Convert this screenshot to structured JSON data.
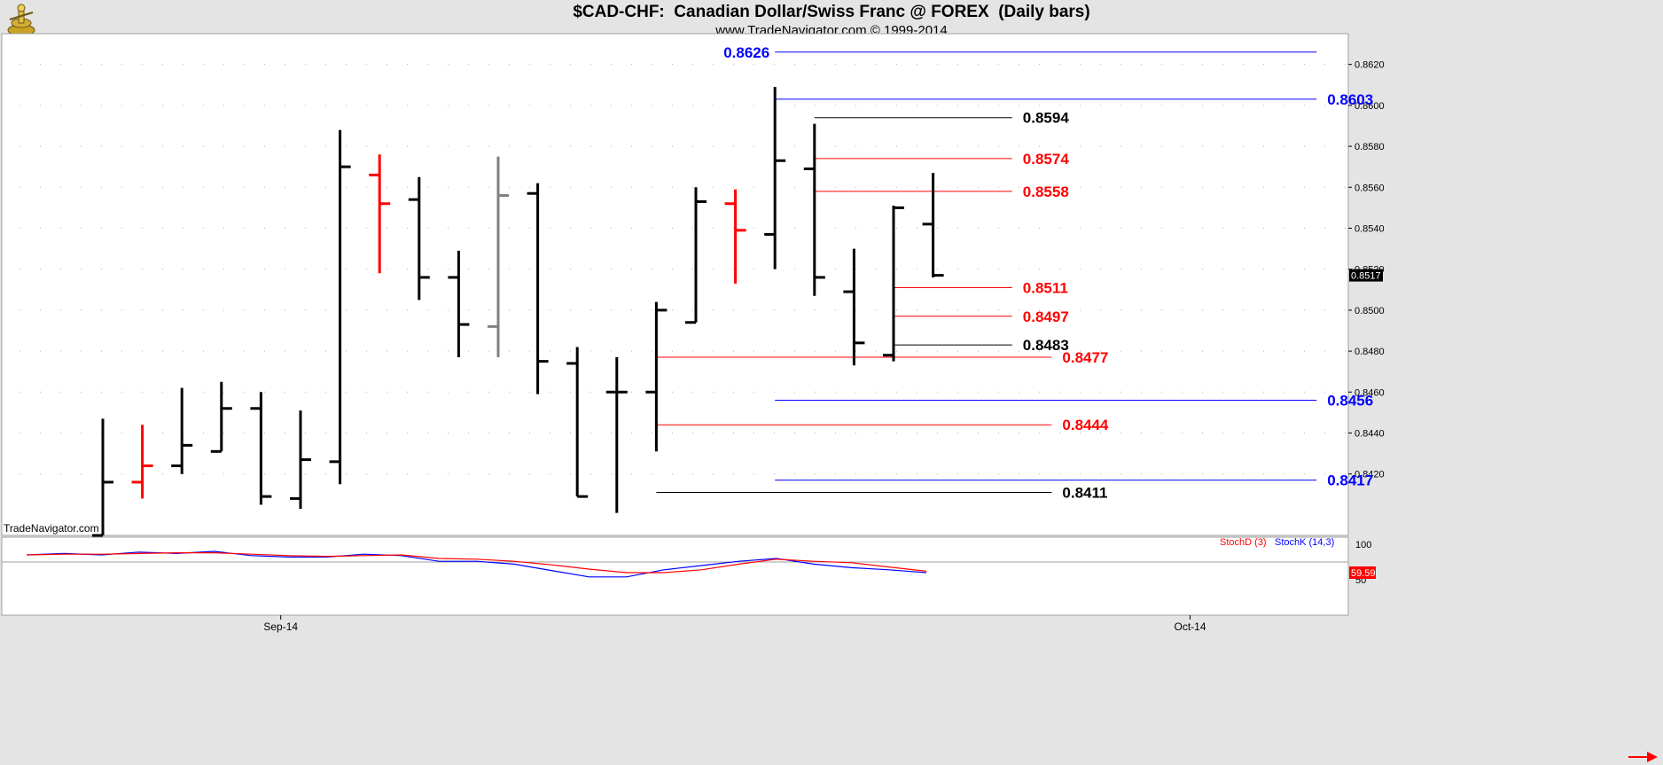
{
  "header": {
    "title": "$CAD-CHF:  Canadian Dollar/Swiss Franc @ FOREX  (Daily bars)",
    "subtitle": "www.TradeNavigator.com © 1999-2014"
  },
  "watermark": "TradeNavigator.com",
  "colors": {
    "up": "#000000",
    "down_red": "#ff0000",
    "gray": "#808080",
    "blue": "#0000ff",
    "panel_bg": "#ffffff",
    "frame_bg": "#e4e4e4"
  },
  "chart_data": [
    {
      "type": "ohlc",
      "title": "$CAD-CHF:  Canadian Dollar/Swiss Franc @ FOREX  (Daily bars)",
      "ylim": [
        0.839,
        0.8635
      ],
      "y_ticks": [
        0.842,
        0.844,
        0.846,
        0.848,
        0.85,
        0.852,
        0.854,
        0.856,
        0.858,
        0.86,
        0.862
      ],
      "x_tick_labels": [
        {
          "label": "Sep-14",
          "bar_index": 4.5
        },
        {
          "label": "Oct-14",
          "bar_index": 27.5
        }
      ],
      "last_price_label": "0.8517",
      "bars": [
        {
          "o": 0.839,
          "h": 0.8447,
          "l": 0.839,
          "c": 0.8416,
          "color": "black"
        },
        {
          "o": 0.8416,
          "h": 0.8444,
          "l": 0.8408,
          "c": 0.8424,
          "color": "red"
        },
        {
          "o": 0.8424,
          "h": 0.8462,
          "l": 0.842,
          "c": 0.8434,
          "color": "black"
        },
        {
          "o": 0.8431,
          "h": 0.8465,
          "l": 0.8431,
          "c": 0.8452,
          "color": "black"
        },
        {
          "o": 0.8452,
          "h": 0.846,
          "l": 0.8405,
          "c": 0.8409,
          "color": "black"
        },
        {
          "o": 0.8408,
          "h": 0.8451,
          "l": 0.8403,
          "c": 0.8427,
          "color": "black"
        },
        {
          "o": 0.8426,
          "h": 0.8588,
          "l": 0.8415,
          "c": 0.857,
          "color": "black"
        },
        {
          "o": 0.8566,
          "h": 0.8576,
          "l": 0.8518,
          "c": 0.8552,
          "color": "red"
        },
        {
          "o": 0.8554,
          "h": 0.8565,
          "l": 0.8505,
          "c": 0.8516,
          "color": "black"
        },
        {
          "o": 0.8516,
          "h": 0.8529,
          "l": 0.8477,
          "c": 0.8493,
          "color": "black"
        },
        {
          "o": 0.8492,
          "h": 0.8575,
          "l": 0.8477,
          "c": 0.8556,
          "color": "gray"
        },
        {
          "o": 0.8557,
          "h": 0.8562,
          "l": 0.8459,
          "c": 0.8475,
          "color": "black"
        },
        {
          "o": 0.8474,
          "h": 0.8482,
          "l": 0.8409,
          "c": 0.8409,
          "color": "black"
        },
        {
          "o": 0.846,
          "h": 0.8477,
          "l": 0.8401,
          "c": 0.846,
          "color": "black"
        },
        {
          "o": 0.846,
          "h": 0.8504,
          "l": 0.8431,
          "c": 0.85,
          "color": "black"
        },
        {
          "o": 0.8494,
          "h": 0.856,
          "l": 0.8494,
          "c": 0.8553,
          "color": "black"
        },
        {
          "o": 0.8552,
          "h": 0.8559,
          "l": 0.8513,
          "c": 0.8539,
          "color": "red"
        },
        {
          "o": 0.8537,
          "h": 0.8609,
          "l": 0.852,
          "c": 0.8573,
          "color": "black"
        },
        {
          "o": 0.8569,
          "h": 0.8591,
          "l": 0.8507,
          "c": 0.8516,
          "color": "black"
        },
        {
          "o": 0.8509,
          "h": 0.853,
          "l": 0.8473,
          "c": 0.8484,
          "color": "black"
        },
        {
          "o": 0.8478,
          "h": 0.8551,
          "l": 0.8475,
          "c": 0.855,
          "color": "black"
        },
        {
          "o": 0.8542,
          "h": 0.8567,
          "l": 0.8516,
          "c": 0.8517,
          "color": "black"
        }
      ],
      "levels": [
        {
          "value": 0.8626,
          "label": "0.8626",
          "color": "blue",
          "from_bar": 17,
          "to_bar": 30.7,
          "label_side": "left"
        },
        {
          "value": 0.8603,
          "label": "0.8603",
          "color": "blue",
          "from_bar": 17,
          "to_bar": 30.7,
          "label_side": "right"
        },
        {
          "value": 0.8594,
          "label": "0.8594",
          "color": "black",
          "from_bar": 18,
          "to_bar": 23,
          "label_side": "right"
        },
        {
          "value": 0.8574,
          "label": "0.8574",
          "color": "red",
          "from_bar": 18,
          "to_bar": 23,
          "label_side": "right"
        },
        {
          "value": 0.8558,
          "label": "0.8558",
          "color": "red",
          "from_bar": 18,
          "to_bar": 23,
          "label_side": "right"
        },
        {
          "value": 0.8511,
          "label": "0.8511",
          "color": "red",
          "from_bar": 20,
          "to_bar": 23,
          "label_side": "right"
        },
        {
          "value": 0.8497,
          "label": "0.8497",
          "color": "red",
          "from_bar": 20,
          "to_bar": 23,
          "label_side": "right"
        },
        {
          "value": 0.8483,
          "label": "0.8483",
          "color": "black",
          "from_bar": 20,
          "to_bar": 23,
          "label_side": "right"
        },
        {
          "value": 0.8477,
          "label": "0.8477",
          "color": "red",
          "from_bar": 14,
          "to_bar": 24,
          "label_side": "right"
        },
        {
          "value": 0.8456,
          "label": "0.8456",
          "color": "blue",
          "from_bar": 17,
          "to_bar": 30.7,
          "label_side": "right"
        },
        {
          "value": 0.8444,
          "label": "0.8444",
          "color": "red",
          "from_bar": 14,
          "to_bar": 24,
          "label_side": "right"
        },
        {
          "value": 0.8417,
          "label": "0.8417",
          "color": "blue",
          "from_bar": 17,
          "to_bar": 30.7,
          "label_side": "right"
        },
        {
          "value": 0.8411,
          "label": "0.8411",
          "color": "black",
          "from_bar": 14,
          "to_bar": 24,
          "label_side": "right"
        }
      ]
    },
    {
      "type": "line",
      "legend": [
        "StochD (3)",
        "StochK (14,3)"
      ],
      "ylim": [
        0,
        110
      ],
      "y_ticks": [
        50,
        100
      ],
      "last_value_label": "59.59",
      "series": [
        {
          "name": "StochK (14,3)",
          "color": "blue",
          "values": [
            85,
            87,
            85,
            89,
            87,
            90,
            84,
            82,
            82,
            86,
            84,
            76,
            76,
            72,
            63,
            54,
            54,
            64,
            70,
            76,
            80,
            72,
            67,
            64,
            60
          ]
        },
        {
          "name": "StochD (3)",
          "color": "red",
          "values": [
            85,
            86,
            86,
            87,
            88,
            88,
            86,
            84,
            83,
            84,
            85,
            80,
            79,
            76,
            71,
            65,
            60,
            60,
            64,
            72,
            79,
            76,
            74,
            68,
            62
          ]
        }
      ]
    }
  ]
}
